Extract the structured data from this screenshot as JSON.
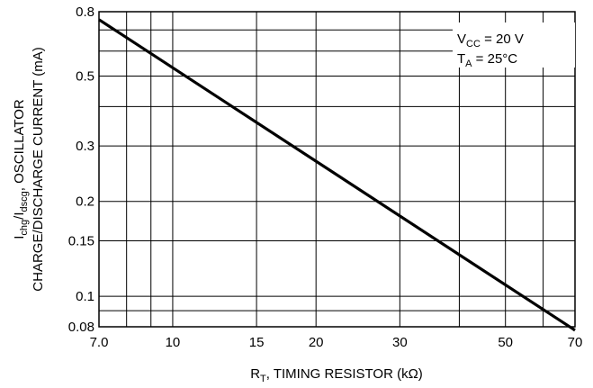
{
  "chart_data": {
    "type": "line",
    "x_scale": "log",
    "y_scale": "log",
    "xlim": [
      7.0,
      70
    ],
    "ylim": [
      0.08,
      0.8
    ],
    "x_ticks": [
      7.0,
      10,
      15,
      20,
      30,
      50,
      70
    ],
    "x_tick_labels": [
      "7.0",
      "10",
      "15",
      "20",
      "30",
      "50",
      "70"
    ],
    "x_gridlines": [
      7.0,
      8,
      9,
      10,
      15,
      20,
      30,
      40,
      50,
      60,
      70
    ],
    "y_ticks": [
      0.08,
      0.1,
      0.15,
      0.2,
      0.3,
      0.5,
      0.8
    ],
    "y_tick_labels": [
      "0.08",
      "0.1",
      "0.15",
      "0.2",
      "0.3",
      "0.5",
      "0.8"
    ],
    "y_gridlines": [
      0.08,
      0.09,
      0.1,
      0.15,
      0.2,
      0.3,
      0.4,
      0.5,
      0.6,
      0.7,
      0.8
    ],
    "grid": true,
    "xlabel": {
      "main": "R",
      "sub": "T",
      "rest": ", TIMING RESISTOR (kΩ)"
    },
    "ylabel_line1": {
      "p1": "I",
      "s1": "chg",
      "p2": "/I",
      "s2": "dscg",
      "p3": ", OSCILLATOR"
    },
    "ylabel_line2": "CHARGE/DISCHARGE CURRENT (mA)",
    "annotations": [
      {
        "main": "V",
        "sub": "CC",
        "rest": " = 20 V"
      },
      {
        "main": "T",
        "sub": "A",
        "rest": " = 25°C"
      }
    ],
    "series": [
      {
        "x": [
          7.0,
          70
        ],
        "y": [
          0.755,
          0.078
        ]
      }
    ]
  }
}
